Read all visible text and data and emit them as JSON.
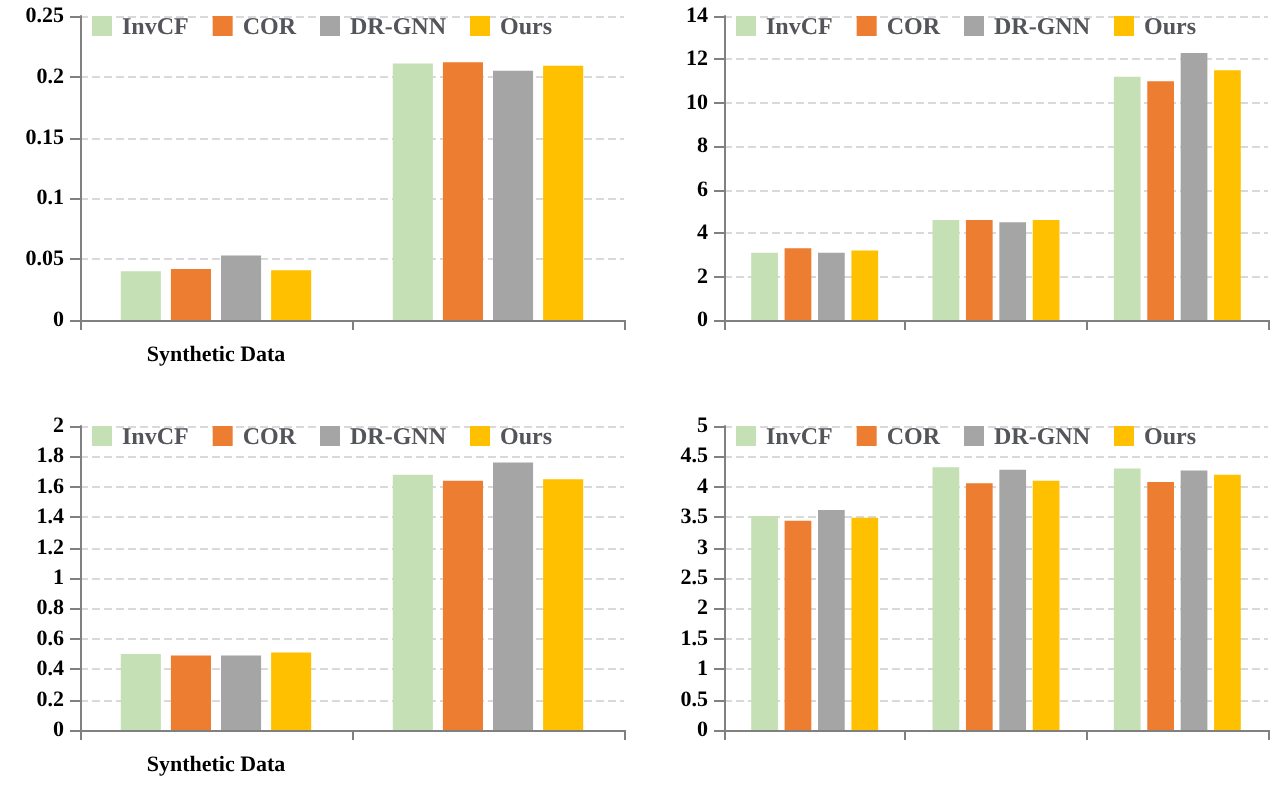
{
  "chart_data": [
    {
      "type": "bar",
      "categories": [
        "Synthetic Data",
        null
      ],
      "series": [
        {
          "name": "InvCF",
          "color": "#c5e0b4",
          "values": [
            0.04,
            0.211
          ]
        },
        {
          "name": "COR",
          "color": "#ed7d31",
          "values": [
            0.042,
            0.212
          ]
        },
        {
          "name": "DR-GNN",
          "color": "#a5a5a5",
          "values": [
            0.053,
            0.205
          ]
        },
        {
          "name": "Ours",
          "color": "#ffc000",
          "values": [
            0.041,
            0.209
          ]
        }
      ],
      "ylim": [
        0,
        0.25
      ],
      "yticks": [
        0,
        0.05,
        0.1,
        0.15,
        0.2,
        0.25
      ],
      "grid": "y",
      "legend": "top"
    },
    {
      "type": "bar",
      "categories": [
        null,
        null,
        null
      ],
      "series": [
        {
          "name": "InvCF",
          "color": "#c5e0b4",
          "values": [
            3.1,
            4.6,
            11.2
          ]
        },
        {
          "name": "COR",
          "color": "#ed7d31",
          "values": [
            3.3,
            4.6,
            11.0
          ]
        },
        {
          "name": "DR-GNN",
          "color": "#a5a5a5",
          "values": [
            3.1,
            4.5,
            12.3
          ]
        },
        {
          "name": "Ours",
          "color": "#ffc000",
          "values": [
            3.2,
            4.6,
            11.5
          ]
        }
      ],
      "ylim": [
        0,
        14
      ],
      "yticks": [
        0,
        2,
        4,
        6,
        8,
        10,
        12,
        14
      ],
      "grid": "y",
      "legend": "top"
    },
    {
      "type": "bar",
      "categories": [
        "Synthetic Data",
        null
      ],
      "series": [
        {
          "name": "InvCF",
          "color": "#c5e0b4",
          "values": [
            0.5,
            1.68
          ]
        },
        {
          "name": "COR",
          "color": "#ed7d31",
          "values": [
            0.49,
            1.64
          ]
        },
        {
          "name": "DR-GNN",
          "color": "#a5a5a5",
          "values": [
            0.49,
            1.76
          ]
        },
        {
          "name": "Ours",
          "color": "#ffc000",
          "values": [
            0.51,
            1.65
          ]
        }
      ],
      "ylim": [
        0,
        2
      ],
      "yticks": [
        0,
        0.2,
        0.4,
        0.6,
        0.8,
        1,
        1.2,
        1.4,
        1.6,
        1.8,
        2
      ],
      "grid": "y",
      "legend": "top"
    },
    {
      "type": "bar",
      "categories": [
        null,
        null,
        null
      ],
      "series": [
        {
          "name": "InvCF",
          "color": "#c5e0b4",
          "values": [
            3.52,
            4.32,
            4.3
          ]
        },
        {
          "name": "COR",
          "color": "#ed7d31",
          "values": [
            3.44,
            4.06,
            4.08
          ]
        },
        {
          "name": "DR-GNN",
          "color": "#a5a5a5",
          "values": [
            3.62,
            4.28,
            4.27
          ]
        },
        {
          "name": "Ours",
          "color": "#ffc000",
          "values": [
            3.49,
            4.1,
            4.2
          ]
        }
      ],
      "ylim": [
        0,
        5
      ],
      "yticks": [
        0,
        0.5,
        1,
        1.5,
        2,
        2.5,
        3,
        3.5,
        4,
        4.5,
        5
      ],
      "grid": "y",
      "legend": "top"
    }
  ]
}
